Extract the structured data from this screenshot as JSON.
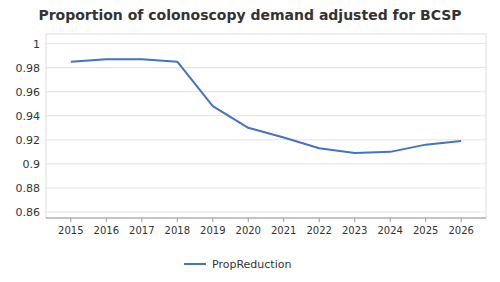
{
  "chart_data": {
    "type": "line",
    "title": "Proportion of colonoscopy demand adjusted for BCSP",
    "x": [
      2015,
      2016,
      2017,
      2018,
      2019,
      2020,
      2021,
      2022,
      2023,
      2024,
      2025,
      2026
    ],
    "series": [
      {
        "name": "PropReduction",
        "color": "#4472C4",
        "values": [
          0.985,
          0.987,
          0.987,
          0.985,
          0.948,
          0.93,
          0.922,
          0.913,
          0.909,
          0.91,
          0.916,
          0.919
        ]
      }
    ],
    "xlim": [
      2014.3,
      2026.7
    ],
    "xticks": [
      2015,
      2016,
      2017,
      2018,
      2019,
      2020,
      2021,
      2022,
      2023,
      2024,
      2025,
      2026
    ],
    "ylim": [
      0.855,
      1.008
    ],
    "yticks": [
      0.86,
      0.88,
      0.9,
      0.92,
      0.94,
      0.96,
      0.98,
      1
    ],
    "grid": true,
    "legend": "bottom"
  }
}
